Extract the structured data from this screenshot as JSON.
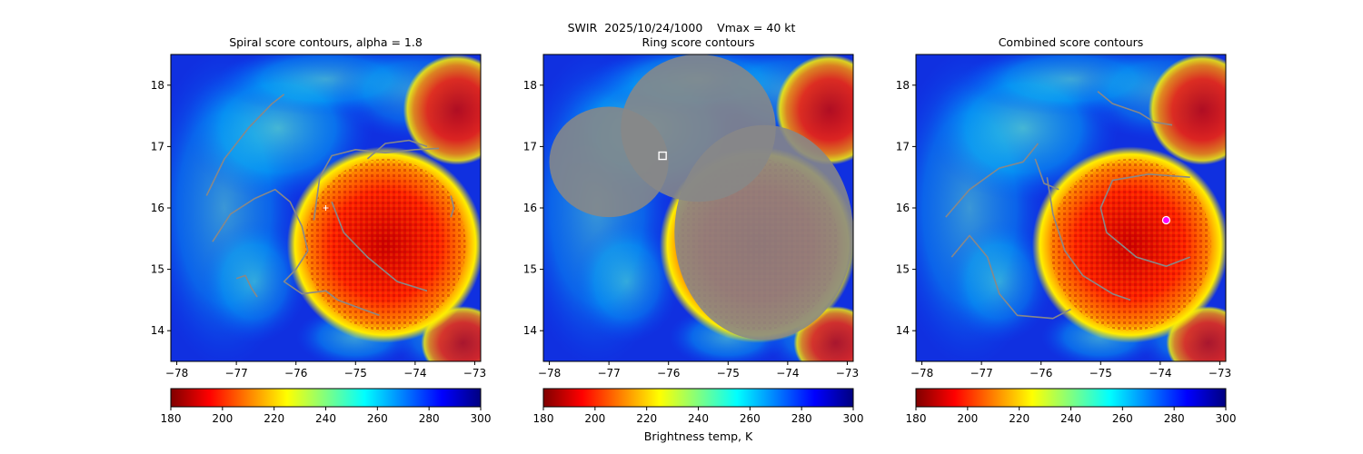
{
  "figure": {
    "suptitle": "SWIR  2025/10/24/1000    Vmax = 40 kt",
    "colorbar_label": "Brightness temp, K"
  },
  "colors": {
    "contour": "#888888",
    "ring_center_marker": "#ffffff",
    "combined_center_marker": "#ff00ff"
  },
  "colormap": {
    "name": "jet_r",
    "stops": [
      "#800000",
      "#ff0000",
      "#ff8000",
      "#ffff00",
      "#80ff80",
      "#00ffff",
      "#0080ff",
      "#0000ff",
      "#000080"
    ]
  },
  "chart_data": [
    {
      "type": "heatmap",
      "title": "Spiral score contours, alpha =  1.8",
      "xlim": [
        -78.1,
        -72.9
      ],
      "ylim": [
        13.5,
        18.5
      ],
      "xticks": [
        -78,
        -77,
        -76,
        -75,
        -74,
        -73
      ],
      "yticks": [
        14,
        15,
        16,
        17,
        18
      ],
      "colorbar": {
        "min": 180,
        "max": 300,
        "ticks": [
          180,
          200,
          220,
          240,
          260,
          280,
          300
        ]
      },
      "center_marker": {
        "lon": -75.5,
        "lat": 16.0
      },
      "contours": [
        [
          [
            -77.5,
            16.2
          ],
          [
            -77.2,
            16.8
          ],
          [
            -76.8,
            17.3
          ],
          [
            -76.4,
            17.7
          ],
          [
            -76.2,
            17.85
          ]
        ],
        [
          [
            -77.4,
            15.45
          ],
          [
            -77.1,
            15.9
          ],
          [
            -76.7,
            16.15
          ],
          [
            -76.35,
            16.3
          ],
          [
            -76.1,
            16.1
          ],
          [
            -75.9,
            15.7
          ],
          [
            -75.8,
            15.3
          ],
          [
            -76.0,
            15.0
          ],
          [
            -76.2,
            14.8
          ],
          [
            -75.9,
            14.6
          ],
          [
            -75.5,
            14.65
          ],
          [
            -75.3,
            14.5
          ],
          [
            -74.6,
            14.25
          ]
        ],
        [
          [
            -75.7,
            15.8
          ],
          [
            -75.6,
            16.5
          ],
          [
            -75.4,
            16.85
          ],
          [
            -75.0,
            16.95
          ],
          [
            -74.5,
            16.9
          ],
          [
            -74.0,
            16.95
          ],
          [
            -73.6,
            16.97
          ]
        ],
        [
          [
            -75.4,
            16.1
          ],
          [
            -75.2,
            15.6
          ],
          [
            -74.8,
            15.2
          ],
          [
            -74.3,
            14.8
          ],
          [
            -73.8,
            14.65
          ]
        ],
        [
          [
            -74.8,
            16.8
          ],
          [
            -74.5,
            17.05
          ],
          [
            -74.1,
            17.1
          ],
          [
            -73.8,
            17.0
          ]
        ],
        [
          [
            -77.0,
            14.85
          ],
          [
            -76.85,
            14.9
          ],
          [
            -76.75,
            14.7
          ],
          [
            -76.65,
            14.55
          ]
        ],
        [
          [
            -73.4,
            15.85
          ],
          [
            -73.35,
            16.0
          ],
          [
            -73.4,
            16.2
          ]
        ]
      ]
    },
    {
      "type": "heatmap",
      "title": "Ring score contours",
      "xlim": [
        -78.1,
        -72.9
      ],
      "ylim": [
        13.5,
        18.5
      ],
      "xticks": [
        -78,
        -77,
        -76,
        -75,
        -74,
        -73
      ],
      "yticks": [
        14,
        15,
        16,
        17,
        18
      ],
      "colorbar": {
        "min": 180,
        "max": 300,
        "ticks": [
          180,
          200,
          220,
          240,
          260,
          280,
          300
        ]
      },
      "center_marker": {
        "lon": -76.1,
        "lat": 16.85
      },
      "score_regions": [
        {
          "center": [
            -77.0,
            16.75
          ],
          "radii": [
            1.0,
            0.9
          ]
        },
        {
          "center": [
            -75.5,
            17.3
          ],
          "radii": [
            1.3,
            1.2
          ]
        },
        {
          "center": [
            -74.4,
            15.6
          ],
          "radii": [
            1.5,
            1.75
          ]
        }
      ]
    },
    {
      "type": "heatmap",
      "title": "Combined score contours",
      "xlim": [
        -78.1,
        -72.9
      ],
      "ylim": [
        13.5,
        18.5
      ],
      "xticks": [
        -78,
        -77,
        -76,
        -75,
        -74,
        -73
      ],
      "yticks": [
        14,
        15,
        16,
        17,
        18
      ],
      "colorbar": {
        "min": 180,
        "max": 300,
        "ticks": [
          180,
          200,
          220,
          240,
          260,
          280,
          300
        ]
      },
      "center_marker": {
        "lon": -73.9,
        "lat": 15.8
      },
      "contours": [
        [
          [
            -77.6,
            15.85
          ],
          [
            -77.2,
            16.3
          ],
          [
            -76.7,
            16.65
          ],
          [
            -76.3,
            16.75
          ],
          [
            -76.05,
            17.05
          ]
        ],
        [
          [
            -77.5,
            15.2
          ],
          [
            -77.2,
            15.55
          ],
          [
            -76.9,
            15.2
          ],
          [
            -76.7,
            14.6
          ],
          [
            -76.4,
            14.25
          ],
          [
            -75.8,
            14.2
          ],
          [
            -75.5,
            14.35
          ]
        ],
        [
          [
            -75.0,
            16.0
          ],
          [
            -74.8,
            16.45
          ],
          [
            -74.2,
            16.55
          ],
          [
            -73.5,
            16.5
          ]
        ],
        [
          [
            -75.0,
            16.0
          ],
          [
            -74.9,
            15.6
          ],
          [
            -74.4,
            15.2
          ],
          [
            -73.9,
            15.05
          ],
          [
            -73.5,
            15.2
          ]
        ],
        [
          [
            -75.9,
            16.5
          ],
          [
            -75.8,
            15.9
          ],
          [
            -75.6,
            15.3
          ],
          [
            -75.3,
            14.9
          ],
          [
            -74.8,
            14.6
          ],
          [
            -74.5,
            14.5
          ]
        ],
        [
          [
            -75.05,
            17.9
          ],
          [
            -74.8,
            17.7
          ],
          [
            -74.35,
            17.55
          ],
          [
            -74.1,
            17.4
          ],
          [
            -73.8,
            17.35
          ]
        ],
        [
          [
            -76.1,
            16.8
          ],
          [
            -75.95,
            16.4
          ],
          [
            -75.7,
            16.3
          ]
        ]
      ]
    }
  ]
}
